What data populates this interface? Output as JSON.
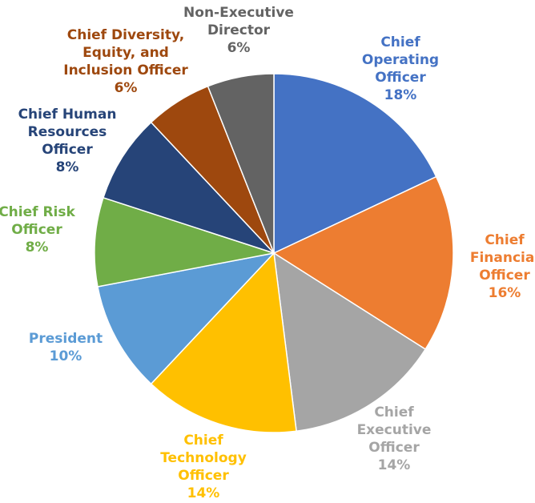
{
  "chart_data": {
    "type": "pie",
    "start_angle_deg": 0,
    "direction": "clockwise",
    "slices": [
      {
        "label": [
          "Chief",
          "Operating",
          "Officer"
        ],
        "value": 18,
        "value_label": "18%",
        "color": "#4472C4"
      },
      {
        "label": [
          "Chief",
          "Financial",
          "Officer"
        ],
        "value": 16,
        "value_label": "16%",
        "color": "#ED7D31"
      },
      {
        "label": [
          "Chief",
          "Executive",
          "Officer"
        ],
        "value": 14,
        "value_label": "14%",
        "color": "#A5A5A5"
      },
      {
        "label": [
          "Chief",
          "Technology",
          "Officer"
        ],
        "value": 14,
        "value_label": "14%",
        "color": "#FFC000"
      },
      {
        "label": [
          "President"
        ],
        "value": 10,
        "value_label": "10%",
        "color": "#5B9BD5"
      },
      {
        "label": [
          "Chief Risk",
          "Officer"
        ],
        "value": 8,
        "value_label": "8%",
        "color": "#70AD47"
      },
      {
        "label": [
          "Chief Human",
          "Resources",
          "Officer"
        ],
        "value": 8,
        "value_label": "8%",
        "color": "#264478"
      },
      {
        "label": [
          "Chief Diversity,",
          "Equity, and",
          "Inclusion Officer"
        ],
        "value": 6,
        "value_label": "6%",
        "color": "#9E480E"
      },
      {
        "label": [
          "Non-Executive",
          "Director"
        ],
        "value": 6,
        "value_label": "6%",
        "color": "#636363"
      }
    ]
  }
}
